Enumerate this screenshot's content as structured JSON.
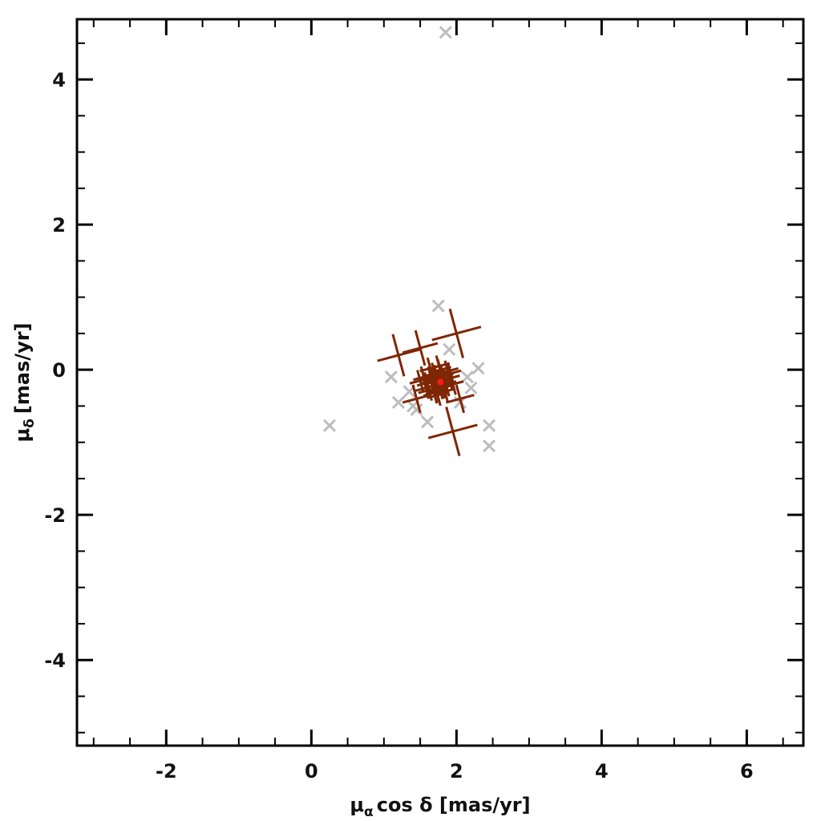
{
  "chart_data": {
    "type": "scatter",
    "x_label": {
      "symbol": "μ",
      "subscript": "α",
      "text": "cos δ [mas/yr]"
    },
    "y_label": {
      "symbol": "μ",
      "subscript": "δ",
      "text": "[mas/yr]"
    },
    "xlim": [
      -3.23,
      6.78
    ],
    "ylim": [
      -5.18,
      4.83
    ],
    "xticks": [
      -2,
      0,
      2,
      4,
      6
    ],
    "yticks": [
      -4,
      -2,
      0,
      2,
      4
    ],
    "minor_tick_step": 0.5,
    "series": [
      {
        "color": "#bdbdbd",
        "marker": "x",
        "x": [
          1.85,
          1.75,
          0.25,
          1.1,
          1.2,
          1.4,
          1.35,
          1.45,
          2.45,
          2.45,
          2.3,
          2.15,
          2.05,
          1.9,
          1.6,
          2.2
        ],
        "values": [
          4.65,
          0.88,
          -0.77,
          -0.1,
          -0.45,
          -0.5,
          -0.3,
          -0.55,
          -1.05,
          -0.77,
          0.02,
          -0.1,
          -0.45,
          0.28,
          -0.72,
          -0.25
        ]
      },
      {
        "color": "#7f2704",
        "marker": "cross",
        "x": [
          1.75,
          1.65,
          1.85,
          1.7,
          1.8,
          1.6,
          1.9,
          1.72,
          1.78,
          1.68,
          1.82,
          1.55,
          1.95,
          1.62,
          1.88,
          1.74,
          1.76,
          1.66,
          1.84,
          1.58,
          1.92,
          1.7,
          1.8,
          1.64,
          1.86,
          1.73,
          1.77,
          1.69,
          1.81,
          1.5,
          2.0,
          1.2,
          1.5,
          1.95,
          1.45,
          2.05
        ],
        "values": [
          -0.15,
          -0.1,
          -0.2,
          -0.05,
          -0.25,
          -0.18,
          -0.12,
          -0.3,
          0.0,
          -0.22,
          -0.08,
          -0.1,
          -0.2,
          -0.28,
          -0.02,
          -0.35,
          0.05,
          -0.15,
          -0.3,
          -0.25,
          -0.05,
          -0.12,
          -0.18,
          0.02,
          -0.22,
          -0.08,
          -0.26,
          -0.32,
          -0.1,
          -0.15,
          0.5,
          0.2,
          0.3,
          -0.85,
          -0.4,
          -0.4
        ],
        "sizes": [
          0.15,
          0.15,
          0.15,
          0.15,
          0.15,
          0.15,
          0.15,
          0.15,
          0.15,
          0.15,
          0.15,
          0.15,
          0.15,
          0.15,
          0.15,
          0.15,
          0.15,
          0.15,
          0.15,
          0.15,
          0.15,
          0.15,
          0.15,
          0.15,
          0.15,
          0.15,
          0.15,
          0.15,
          0.15,
          0.15,
          0.35,
          0.3,
          0.25,
          0.35,
          0.2,
          0.2
        ]
      },
      {
        "color": "#ff1a1a",
        "marker": "dot",
        "x": [
          1.78
        ],
        "values": [
          -0.17
        ]
      }
    ]
  }
}
